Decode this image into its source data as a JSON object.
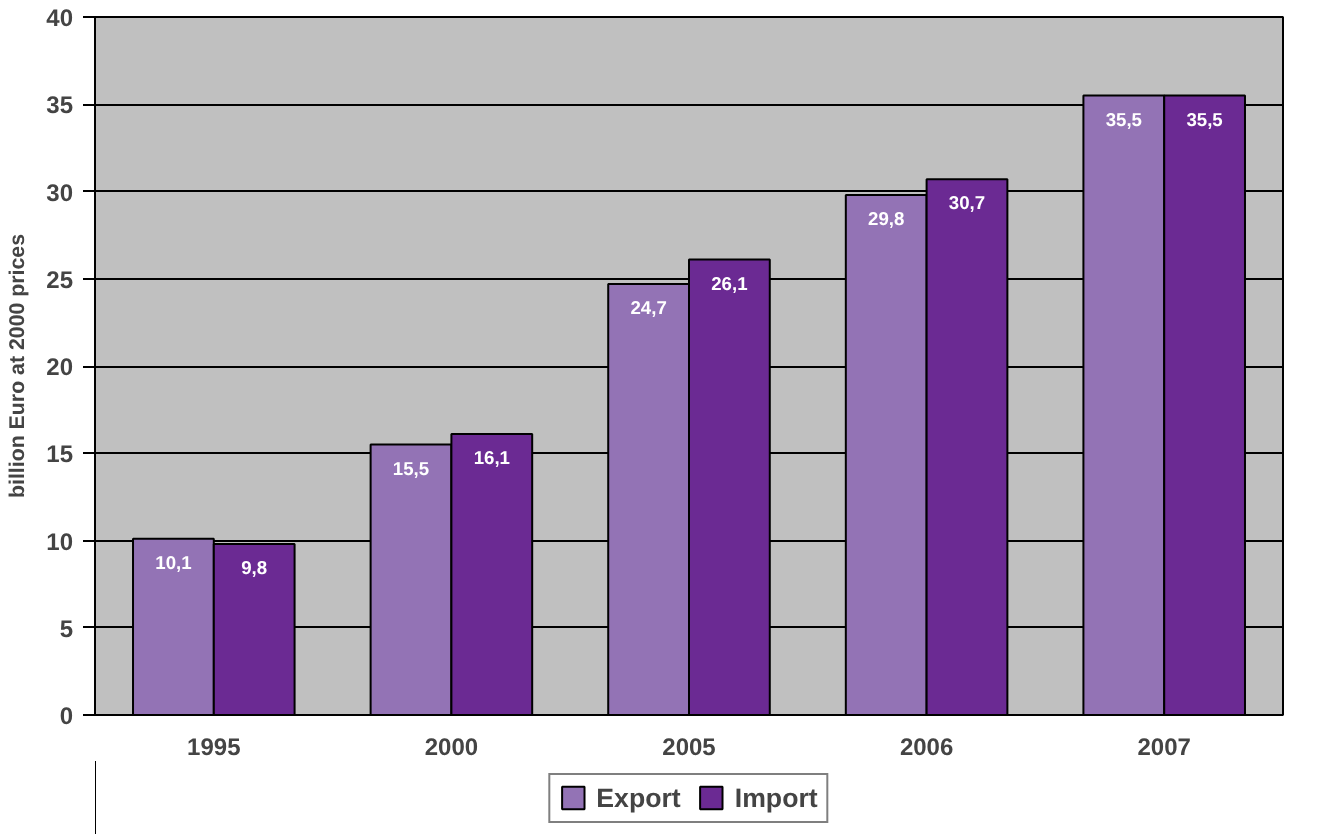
{
  "chart_data": {
    "type": "bar",
    "ylabel": "billion Euro at 2000 prices",
    "categories": [
      "1995",
      "2000",
      "2005",
      "2006",
      "2007"
    ],
    "series": [
      {
        "name": "Export",
        "color": "#9373b5",
        "values": [
          10.1,
          15.5,
          24.7,
          29.8,
          35.5
        ],
        "value_labels": [
          "10,1",
          "15,5",
          "24,7",
          "29,8",
          "35,5"
        ]
      },
      {
        "name": "Import",
        "color": "#6b2a93",
        "values": [
          9.8,
          16.1,
          26.1,
          30.7,
          35.5
        ],
        "value_labels": [
          "9,8",
          "16,1",
          "26,1",
          "30,7",
          "35,5"
        ]
      }
    ],
    "ylim": [
      0,
      40
    ],
    "yticks": [
      0,
      5,
      10,
      15,
      20,
      25,
      30,
      35,
      40
    ],
    "grid": "y",
    "legend": "bottom"
  }
}
